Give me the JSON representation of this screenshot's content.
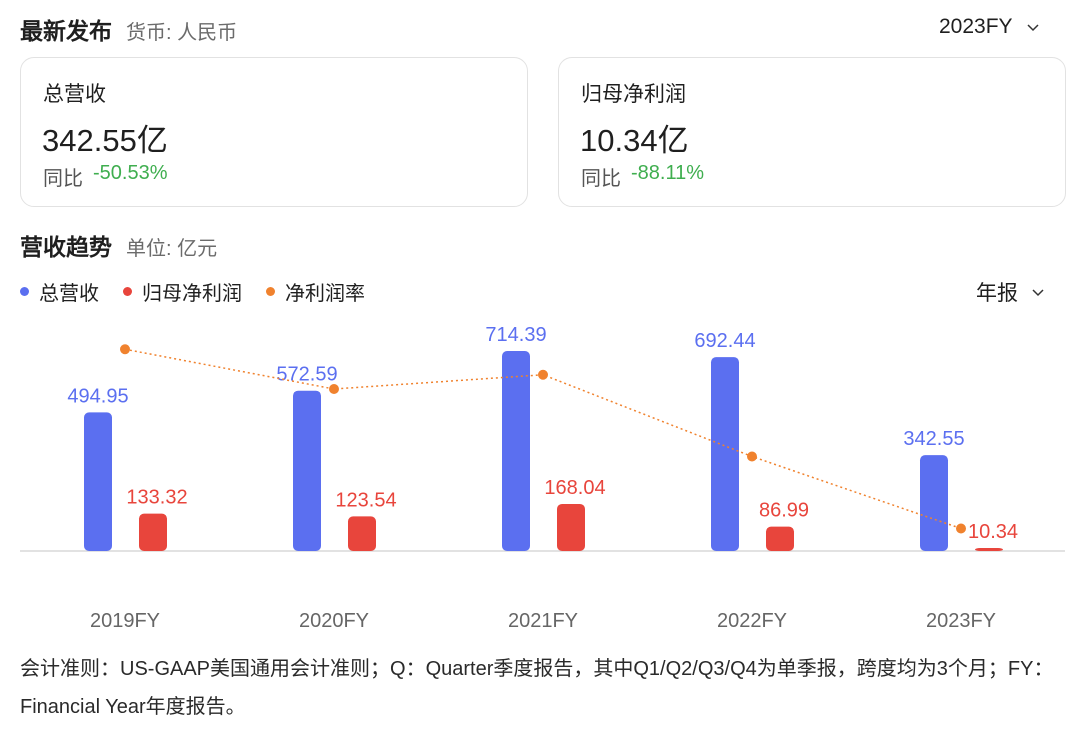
{
  "header": {
    "title": "最新发布",
    "currency_label": "货币: 人民币",
    "period_select": "2023FY"
  },
  "cards": [
    {
      "label": "总营收",
      "value": "342.55亿",
      "yoy_label": "同比",
      "yoy_value": "-50.53%"
    },
    {
      "label": "归母净利润",
      "value": "10.34亿",
      "yoy_label": "同比",
      "yoy_value": "-88.11%"
    }
  ],
  "trend": {
    "title": "营收趋势",
    "unit_label": "单位: 亿元",
    "report_select": "年报"
  },
  "colors": {
    "revenue": "#5b6ff0",
    "net_profit": "#e8453c",
    "margin": "#f0822e",
    "yoy_negative": "#3fae4f"
  },
  "chart_data": {
    "type": "bar",
    "categories": [
      "2019FY",
      "2020FY",
      "2021FY",
      "2022FY",
      "2023FY"
    ],
    "series": [
      {
        "name": "总营收",
        "type": "bar",
        "values": [
          494.95,
          572.59,
          714.39,
          692.44,
          342.55
        ]
      },
      {
        "name": "归母净利润",
        "type": "bar",
        "values": [
          133.32,
          123.54,
          168.04,
          86.99,
          10.34
        ]
      },
      {
        "name": "净利润率",
        "type": "line",
        "values": [
          26.9,
          21.6,
          23.5,
          12.6,
          3.0
        ]
      }
    ],
    "legend_position": "top-left",
    "grid": false
  },
  "footnote": "会计准则：US-GAAP美国通用会计准则；Q：Quarter季度报告，其中Q1/Q2/Q3/Q4为单季报，跨度均为3个月；FY：Financial Year年度报告。"
}
